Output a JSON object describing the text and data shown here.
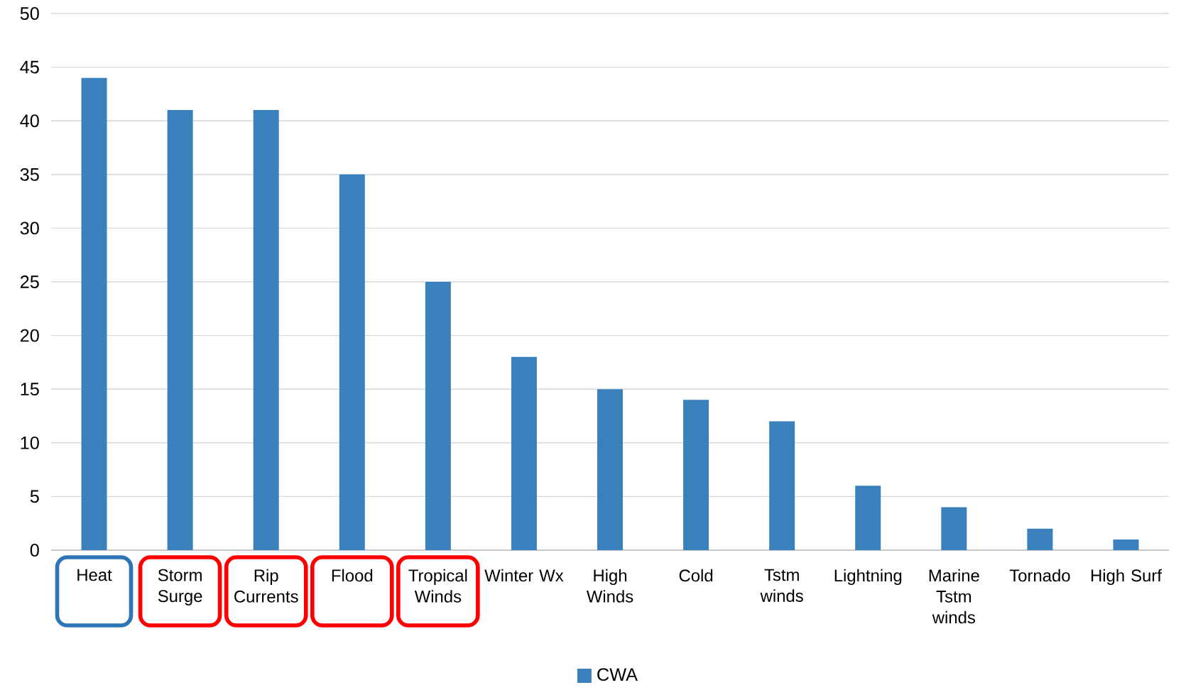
{
  "chart_data": {
    "type": "bar",
    "categories": [
      "Heat",
      "Storm Surge",
      "Rip Currents",
      "Flood",
      "Tropical Winds",
      "Winter Wx",
      "High Winds",
      "Cold",
      "Tstm winds",
      "Lightning",
      "Marine Tstm winds",
      "Tornado",
      "High Surf"
    ],
    "series": [
      {
        "name": "CWA",
        "color": "#3a80bc",
        "values": [
          44,
          41,
          41,
          35,
          25,
          18,
          15,
          14,
          12,
          6,
          4,
          2,
          1
        ]
      }
    ],
    "ylim": [
      0,
      50
    ],
    "yticks": [
      0,
      5,
      10,
      15,
      20,
      25,
      30,
      35,
      40,
      45,
      50
    ],
    "grid": "y",
    "legend": "bottom"
  }
}
